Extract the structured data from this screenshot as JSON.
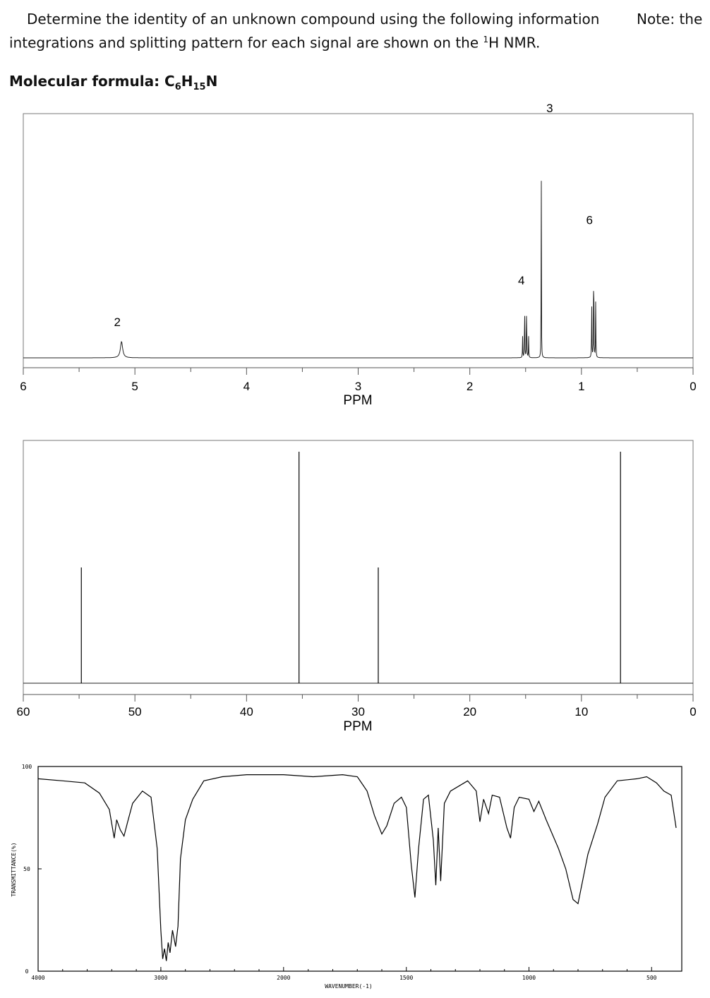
{
  "question": {
    "line1": "Determine the identity of an unknown compound using the following information",
    "note": "Note: the",
    "line2_pre": "integrations and splitting pattern for each signal are shown on the ",
    "line2_sup": "1",
    "line2_post": "H NMR.",
    "formula_label": "Molecular formula: C",
    "formula_sub1": "6",
    "formula_mid": "H",
    "formula_sub2": "15",
    "formula_end": "N"
  },
  "chart_data": [
    {
      "type": "line",
      "subtype": "1H NMR spectrum",
      "xlabel": "PPM",
      "xlim": [
        6,
        0
      ],
      "xticks": [
        "6",
        "5",
        "4",
        "3",
        "2",
        "1",
        "0"
      ],
      "peaks": [
        {
          "ppm": 5.12,
          "integration": "2",
          "multiplicity": "broad singlet",
          "height": 0.07
        },
        {
          "ppm": 1.5,
          "integration": "4",
          "multiplicity": "quartet",
          "height": 0.26
        },
        {
          "ppm": 1.36,
          "integration": "3",
          "multiplicity": "singlet",
          "height": 1.0
        },
        {
          "ppm": 0.89,
          "integration": "6",
          "multiplicity": "triplet",
          "height": 0.52
        }
      ]
    },
    {
      "type": "bar",
      "subtype": "13C NMR spectrum",
      "xlabel": "PPM",
      "xlim": [
        60,
        0
      ],
      "xticks": [
        "60",
        "50",
        "40",
        "30",
        "20",
        "10",
        "0"
      ],
      "peaks": [
        {
          "ppm": 54.8,
          "height": 0.5
        },
        {
          "ppm": 35.3,
          "height": 1.0
        },
        {
          "ppm": 28.2,
          "height": 0.5
        },
        {
          "ppm": 6.5,
          "height": 1.0
        }
      ]
    },
    {
      "type": "line",
      "subtype": "IR spectrum",
      "xlabel": "WAVENUMBER(-1)",
      "ylabel": "TRANSMITTANCE(%)",
      "xlim": [
        4000,
        400
      ],
      "ylim": [
        0,
        100
      ],
      "xticks": [
        "4000",
        "3000",
        "2000",
        "1500",
        "1000",
        "500"
      ],
      "yticks": [
        "100",
        "50",
        "0"
      ],
      "points": [
        [
          4000,
          94
        ],
        [
          3800,
          93
        ],
        [
          3620,
          92
        ],
        [
          3500,
          87
        ],
        [
          3420,
          79
        ],
        [
          3380,
          65
        ],
        [
          3360,
          74
        ],
        [
          3330,
          69
        ],
        [
          3300,
          66
        ],
        [
          3270,
          73
        ],
        [
          3230,
          82
        ],
        [
          3150,
          88
        ],
        [
          3080,
          85
        ],
        [
          3030,
          60
        ],
        [
          3000,
          20
        ],
        [
          2985,
          6
        ],
        [
          2970,
          11
        ],
        [
          2955,
          5
        ],
        [
          2940,
          14
        ],
        [
          2925,
          9
        ],
        [
          2905,
          20
        ],
        [
          2880,
          12
        ],
        [
          2860,
          22
        ],
        [
          2840,
          55
        ],
        [
          2800,
          74
        ],
        [
          2740,
          84
        ],
        [
          2650,
          93
        ],
        [
          2500,
          95
        ],
        [
          2300,
          96
        ],
        [
          2100,
          96
        ],
        [
          2000,
          96
        ],
        [
          1880,
          95
        ],
        [
          1760,
          96
        ],
        [
          1700,
          95
        ],
        [
          1660,
          88
        ],
        [
          1630,
          76
        ],
        [
          1600,
          67
        ],
        [
          1580,
          71
        ],
        [
          1550,
          82
        ],
        [
          1520,
          85
        ],
        [
          1500,
          80
        ],
        [
          1480,
          52
        ],
        [
          1465,
          36
        ],
        [
          1450,
          60
        ],
        [
          1430,
          84
        ],
        [
          1410,
          86
        ],
        [
          1390,
          64
        ],
        [
          1380,
          42
        ],
        [
          1370,
          70
        ],
        [
          1360,
          44
        ],
        [
          1345,
          82
        ],
        [
          1320,
          88
        ],
        [
          1250,
          93
        ],
        [
          1215,
          88
        ],
        [
          1200,
          73
        ],
        [
          1185,
          84
        ],
        [
          1165,
          77
        ],
        [
          1150,
          86
        ],
        [
          1120,
          85
        ],
        [
          1090,
          70
        ],
        [
          1075,
          65
        ],
        [
          1060,
          80
        ],
        [
          1040,
          85
        ],
        [
          1000,
          84
        ],
        [
          980,
          78
        ],
        [
          960,
          83
        ],
        [
          930,
          74
        ],
        [
          880,
          60
        ],
        [
          850,
          50
        ],
        [
          820,
          35
        ],
        [
          800,
          33
        ],
        [
          780,
          45
        ],
        [
          760,
          57
        ],
        [
          720,
          72
        ],
        [
          690,
          85
        ],
        [
          640,
          93
        ],
        [
          560,
          94
        ],
        [
          520,
          95
        ],
        [
          480,
          92
        ],
        [
          450,
          88
        ],
        [
          420,
          86
        ],
        [
          400,
          70
        ]
      ]
    }
  ]
}
